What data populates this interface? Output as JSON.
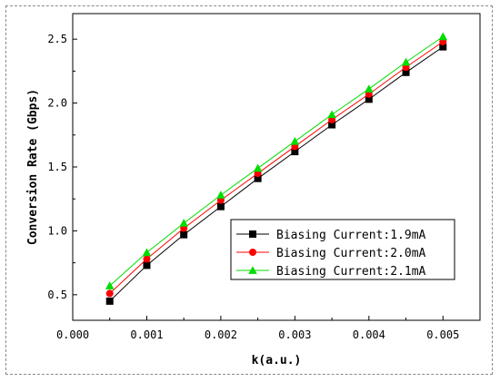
{
  "chart_data": {
    "type": "line",
    "xlabel": "k(a.u.)",
    "ylabel": "Conversion Rate (Gbps)",
    "xlim": [
      0.0,
      0.0055
    ],
    "ylim": [
      0.3,
      2.7
    ],
    "x_ticks": [
      "0.000",
      "0.001",
      "0.002",
      "0.003",
      "0.004",
      "0.005"
    ],
    "y_ticks": [
      "0.5",
      "1.0",
      "1.5",
      "2.0",
      "2.5"
    ],
    "x": [
      0.0005,
      0.001,
      0.0015,
      0.002,
      0.0025,
      0.003,
      0.0035,
      0.004,
      0.0045,
      0.005
    ],
    "legend_position": "bottom-right",
    "series": [
      {
        "name": "Biasing Current:1.9mA",
        "color": "#000000",
        "marker": "square",
        "values": [
          0.45,
          0.73,
          0.97,
          1.19,
          1.41,
          1.62,
          1.83,
          2.03,
          2.24,
          2.44
        ]
      },
      {
        "name": "Biasing Current:2.0mA",
        "color": "#ff0000",
        "marker": "circle",
        "values": [
          0.51,
          0.78,
          1.02,
          1.24,
          1.45,
          1.66,
          1.87,
          2.07,
          2.28,
          2.48
        ]
      },
      {
        "name": "Biasing Current:2.1mA",
        "color": "#00dd00",
        "marker": "triangle",
        "values": [
          0.57,
          0.83,
          1.06,
          1.28,
          1.49,
          1.7,
          1.91,
          2.11,
          2.32,
          2.52
        ]
      }
    ]
  }
}
